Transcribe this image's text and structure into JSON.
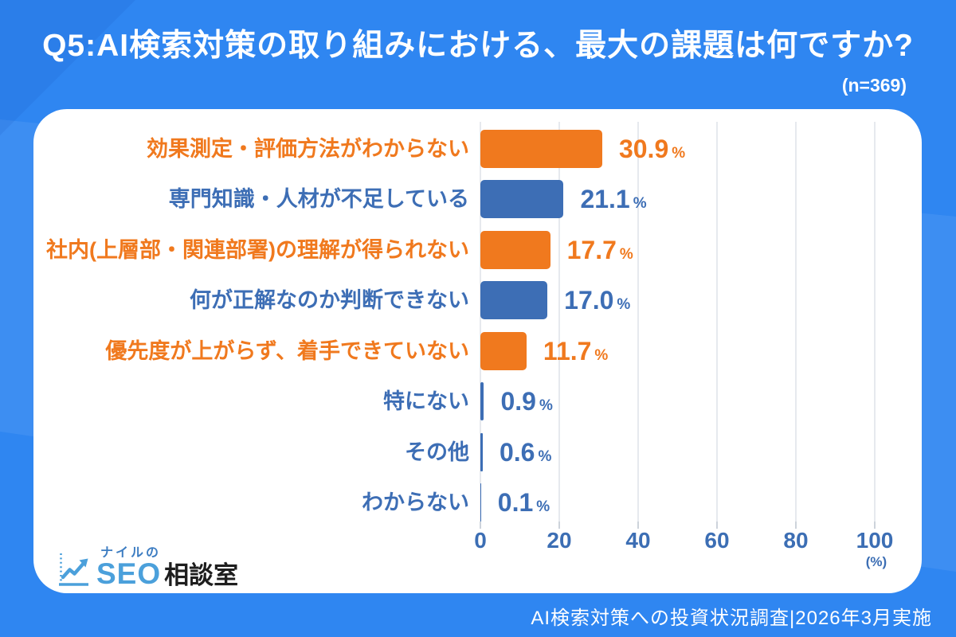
{
  "page": {
    "title": "Q5:AI検索対策の取り組みにおける、最大の課題は何ですか?",
    "sample_size_label": "(n=369)"
  },
  "footer": {
    "source_label": "AI検索対策への投資状況調査|2026年3月実施"
  },
  "logo": {
    "brand_top": "ナイルの",
    "brand_main": "SEO",
    "brand_suffix": "相談室",
    "icon": "trend-line-chart-icon"
  },
  "chart_data": {
    "type": "bar",
    "orientation": "horizontal",
    "title": "Q5:AI検索対策の取り組みにおける、最大の課題は何ですか?",
    "sample_size": 369,
    "unit": "%",
    "xlim": [
      0,
      100
    ],
    "x_ticks": [
      0,
      20,
      40,
      60,
      80,
      100
    ],
    "x_axis_unit_label": "(%)",
    "grid": true,
    "legend_position": "none",
    "categories": [
      "効果測定・評価方法がわからない",
      "専門知識・人材が不足している",
      "社内(上層部・関連部署)の理解が得られない",
      "何が正解なのか判断できない",
      "優先度が上がらず、着手できていない",
      "特にない",
      "その他",
      "わからない"
    ],
    "values": [
      30.9,
      21.1,
      17.7,
      17.0,
      11.7,
      0.9,
      0.6,
      0.1
    ],
    "bar_colors": [
      "#F0791E",
      "#3D6EB5",
      "#F0791E",
      "#3D6EB5",
      "#F0791E",
      "#3D6EB5",
      "#3D6EB5",
      "#3D6EB5"
    ]
  },
  "colors": {
    "background": "#2F86F1",
    "card": "#FFFFFF",
    "orange": "#F0791E",
    "blue": "#3D6EB5",
    "axis_text": "#3C6EB4",
    "gridline": "#E6E9EE",
    "title_text": "#FFFFFF",
    "logo_light_blue": "#4BA0DB",
    "logo_dark_blue": "#3D7DC2"
  }
}
